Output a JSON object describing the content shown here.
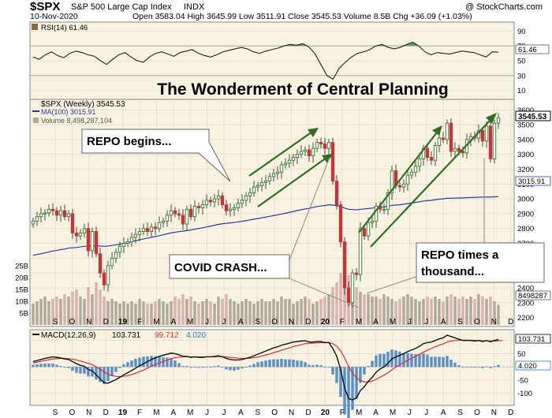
{
  "header": {
    "symbol": "$SPX",
    "name": "S&P 500 Large Cap Index",
    "exchange": "INDX",
    "credit": "@ StockCharts.com",
    "date": "10-Nov-2020",
    "ohlc": "Open 3583.04  High 3645.99  Low 3511.91  Close 3545.53  Volume 8.5B  Chg +36.09 (+1.03%)",
    "chg_icon": "up-arrow-icon"
  },
  "rsi": {
    "legend": "RSI(14) 61.46",
    "ticks": [
      "90",
      "70",
      "50",
      "30",
      "10"
    ],
    "tick_values": [
      90,
      70,
      50,
      30,
      10
    ],
    "value_label": "61.46",
    "value": 61.46,
    "series": [
      55,
      52,
      58,
      62,
      57,
      54,
      60,
      63,
      61,
      58,
      56,
      50,
      45,
      52,
      58,
      61,
      55,
      50,
      48,
      55,
      60,
      62,
      59,
      56,
      61,
      63,
      65,
      60,
      57,
      55,
      58,
      62,
      64,
      66,
      68,
      66,
      62,
      60,
      63,
      65,
      67,
      70,
      72,
      71,
      73,
      69,
      60,
      45,
      30,
      25,
      40,
      48,
      55,
      60,
      62,
      65,
      70,
      72,
      68,
      66,
      68,
      72,
      75,
      70,
      62,
      58,
      61,
      60,
      59,
      61,
      63,
      62,
      61,
      58,
      55,
      62,
      61.46
    ]
  },
  "price": {
    "title": "The Wonderment of Central Planning",
    "legend_price": "$SPX (Weekly) 3545.53",
    "legend_ma": "MA(100) 3015.91",
    "legend_vol": "Volume 8,498,287,104",
    "ticks": [
      "3600",
      "3500",
      "3400",
      "3300",
      "3200",
      "3100",
      "3000",
      "2900",
      "2800",
      "2700",
      "2600",
      "2500",
      "2400",
      "2300",
      "2200"
    ],
    "tick_values": [
      3600,
      3500,
      3400,
      3300,
      3200,
      3100,
      3000,
      2900,
      2800,
      2700,
      2600,
      2500,
      2400,
      2300,
      2200
    ],
    "close_label": "3545.53",
    "ma_label": "3015.91",
    "vol_label": "8498287",
    "vol_ticks": [
      "25B",
      "20B",
      "15B",
      "10B",
      "5B"
    ],
    "vol_tick_values": [
      25,
      20,
      15,
      10,
      5
    ],
    "closes": [
      2850,
      2880,
      2900,
      2905,
      2930,
      2920,
      2890,
      2920,
      2880,
      2900,
      2770,
      2750,
      2770,
      2800,
      2650,
      2780,
      2630,
      2500,
      2420,
      2550,
      2600,
      2640,
      2680,
      2700,
      2710,
      2740,
      2760,
      2780,
      2800,
      2780,
      2810,
      2800,
      2840,
      2850,
      2890,
      2920,
      2900,
      2890,
      2830,
      2930,
      2880,
      2950,
      2940,
      2960,
      2990,
      2980,
      3000,
      3020,
      2960,
      2920,
      2930,
      2940,
      2970,
      2990,
      3020,
      3040,
      3080,
      3090,
      3110,
      3120,
      3150,
      3170,
      3180,
      3230,
      3240,
      3260,
      3280,
      3300,
      3320,
      3330,
      3290,
      3340,
      3380,
      3370,
      3340,
      3380,
      3120,
      2960,
      2710,
      2400,
      2300,
      2500,
      2490,
      2800,
      2750,
      2840,
      2850,
      2950,
      2930,
      2930,
      3040,
      3190,
      3090,
      3080,
      3100,
      3160,
      3180,
      3220,
      3270,
      3340,
      3280,
      3260,
      3360,
      3410,
      3400,
      3510,
      3320,
      3340,
      3320,
      3310,
      3400,
      3420,
      3410,
      3460,
      3390,
      3490,
      3270,
      3510,
      3545.53
    ],
    "ma": [
      2620,
      2625,
      2630,
      2636,
      2642,
      2648,
      2652,
      2658,
      2662,
      2668,
      2670,
      2672,
      2676,
      2680,
      2680,
      2684,
      2684,
      2682,
      2680,
      2682,
      2686,
      2690,
      2694,
      2700,
      2705,
      2712,
      2718,
      2724,
      2730,
      2735,
      2741,
      2746,
      2752,
      2758,
      2764,
      2770,
      2775,
      2779,
      2782,
      2786,
      2790,
      2796,
      2800,
      2805,
      2811,
      2816,
      2822,
      2828,
      2832,
      2835,
      2838,
      2841,
      2845,
      2849,
      2853,
      2858,
      2863,
      2867,
      2872,
      2877,
      2882,
      2887,
      2892,
      2898,
      2903,
      2909,
      2915,
      2921,
      2927,
      2932,
      2936,
      2942,
      2948,
      2952,
      2955,
      2960,
      2958,
      2954,
      2948,
      2938,
      2930,
      2928,
      2926,
      2930,
      2932,
      2935,
      2938,
      2942,
      2944,
      2946,
      2950,
      2956,
      2958,
      2960,
      2964,
      2968,
      2972,
      2976,
      2980,
      2985,
      2988,
      2990,
      2994,
      2998,
      3000,
      3004,
      3004,
      3005,
      3006,
      3006,
      3008,
      3009,
      3010,
      3011,
      3012,
      3013,
      3012,
      3014,
      3015.91
    ],
    "volume": [
      9,
      10,
      11,
      12,
      10,
      11,
      12,
      11,
      13,
      12,
      14,
      15,
      12,
      11,
      16,
      13,
      18,
      15,
      12,
      10,
      11,
      10,
      9,
      10,
      9,
      10,
      9,
      11,
      10,
      9,
      9,
      10,
      11,
      10,
      9,
      10,
      12,
      11,
      13,
      11,
      12,
      10,
      9,
      10,
      11,
      10,
      9,
      12,
      11,
      13,
      11,
      10,
      9,
      10,
      11,
      10,
      9,
      10,
      11,
      10,
      10,
      11,
      10,
      12,
      11,
      11,
      9,
      10,
      11,
      12,
      11,
      9,
      10,
      11,
      12,
      13,
      16,
      18,
      22,
      24,
      21,
      17,
      16,
      14,
      13,
      13,
      12,
      12,
      11,
      13,
      12,
      11,
      10,
      11,
      12,
      13,
      12,
      11,
      10,
      11,
      12,
      11,
      12,
      11,
      10,
      12,
      13,
      12,
      11,
      12,
      11,
      12,
      11,
      13,
      12,
      11,
      12,
      10,
      8.5
    ]
  },
  "annotations": {
    "repo_begins": "REPO begins...",
    "covid_crash": "COVID CRASH...",
    "repo_thousand_line1": "REPO times a",
    "repo_thousand_line2": "thousand..."
  },
  "macd": {
    "legend_label": "MACD(12,26,9)",
    "legend_macd": "103.731",
    "legend_signal": "99.712",
    "legend_hist": "4.020",
    "ticks": [
      "100",
      "50",
      "0",
      "-50",
      "-100"
    ],
    "tick_values": [
      100,
      50,
      0,
      -50,
      -100
    ],
    "macd_label": "103.731",
    "hist_label": "4.020",
    "macd": [
      20,
      24,
      28,
      32,
      35,
      38,
      36,
      34,
      30,
      28,
      20,
      12,
      6,
      2,
      -10,
      -15,
      -30,
      -45,
      -60,
      -62,
      -55,
      -48,
      -40,
      -30,
      -22,
      -14,
      -5,
      4,
      12,
      20,
      28,
      34,
      40,
      44,
      48,
      52,
      50,
      46,
      40,
      40,
      36,
      38,
      36,
      36,
      38,
      38,
      40,
      42,
      38,
      32,
      28,
      26,
      26,
      28,
      32,
      36,
      42,
      48,
      54,
      60,
      66,
      72,
      76,
      82,
      86,
      90,
      94,
      96,
      98,
      99,
      94,
      94,
      96,
      96,
      92,
      92,
      70,
      40,
      -10,
      -80,
      -120,
      -125,
      -118,
      -90,
      -75,
      -55,
      -40,
      -20,
      -8,
      0,
      14,
      30,
      38,
      44,
      50,
      58,
      64,
      70,
      78,
      88,
      92,
      94,
      100,
      106,
      110,
      120,
      115,
      110,
      105,
      100,
      100,
      100,
      98,
      100,
      96,
      100,
      95,
      100,
      103.731
    ],
    "signal": [
      15,
      18,
      21,
      24,
      27,
      30,
      31,
      32,
      32,
      31,
      29,
      26,
      22,
      18,
      13,
      8,
      0,
      -9,
      -19,
      -28,
      -33,
      -36,
      -37,
      -36,
      -33,
      -29,
      -24,
      -18,
      -12,
      -5,
      2,
      9,
      15,
      21,
      26,
      31,
      35,
      37,
      38,
      38,
      38,
      38,
      38,
      38,
      38,
      38,
      38,
      39,
      39,
      38,
      36,
      35,
      33,
      32,
      32,
      33,
      35,
      37,
      41,
      45,
      49,
      54,
      58,
      63,
      68,
      72,
      77,
      81,
      84,
      88,
      89,
      90,
      91,
      92,
      92,
      92,
      88,
      78,
      61,
      33,
      2,
      -23,
      -42,
      -52,
      -57,
      -57,
      -54,
      -47,
      -39,
      -31,
      -22,
      -11,
      -1,
      8,
      17,
      25,
      33,
      40,
      48,
      56,
      63,
      70,
      76,
      82,
      87,
      94,
      98,
      100,
      101,
      101,
      101,
      101,
      100,
      100,
      99,
      99,
      98,
      98,
      99,
      99.712
    ]
  },
  "xaxis": {
    "labels": [
      "S",
      "O",
      "N",
      "D",
      "19",
      "F",
      "M",
      "A",
      "M",
      "J",
      "J",
      "A",
      "S",
      "O",
      "N",
      "D",
      "20",
      "F",
      "M",
      "A",
      "M",
      "J",
      "J",
      "A",
      "S",
      "O",
      "N",
      "D"
    ],
    "bold": [
      "19",
      "20"
    ]
  },
  "colors": {
    "bg_panel": "#f8f3e0",
    "up_candle": "#2b7a2b",
    "down_candle": "#c8323b",
    "ma_line": "#2c3a9e",
    "volume_bar": "#b0aa9c",
    "volume_bar_down": "#d9b3b3",
    "arrow_green": "#2e6e22",
    "macd_line": "#111111",
    "signal_line": "#e12d2d",
    "hist_bar": "#5a8fc9",
    "rsi_line": "#222222",
    "rsi_fill": "#6a9e5a"
  }
}
